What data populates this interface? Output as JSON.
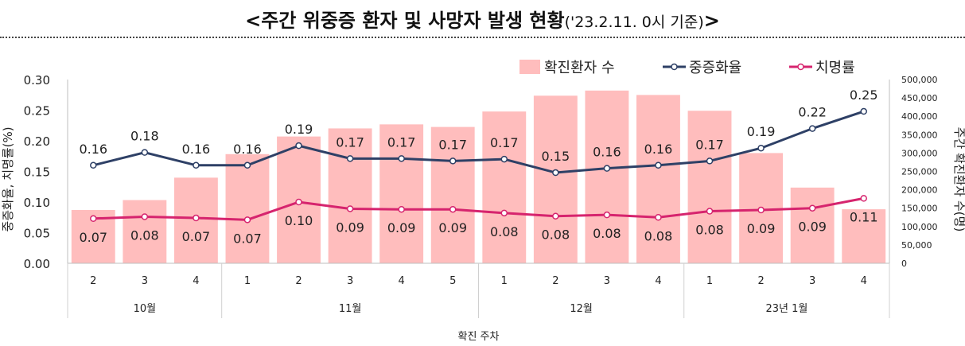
{
  "title": {
    "main": "<주간 위중증 환자 및 사망자 발생 현황",
    "sub": "('23.2.11. 0시 기준)",
    "end": ">"
  },
  "colors": {
    "bar": "#FFBDBD",
    "severe": "#2E4066",
    "fatality": "#D6246E"
  },
  "chart_data": {
    "type": "bar",
    "weeks": [
      "2",
      "3",
      "4",
      "1",
      "2",
      "3",
      "4",
      "5",
      "1",
      "2",
      "3",
      "4",
      "1",
      "2",
      "3",
      "4"
    ],
    "months": [
      {
        "label": "10월",
        "span": 3
      },
      {
        "label": "11월",
        "span": 5
      },
      {
        "label": "12월",
        "span": 4
      },
      {
        "label": "23년 1월",
        "span": 4
      }
    ],
    "series": [
      {
        "name": "확진환자 수",
        "kind": "bar",
        "axis": "right",
        "values": [
          145000,
          172000,
          233000,
          297000,
          345000,
          367000,
          378000,
          371000,
          413000,
          456000,
          470000,
          458000,
          415000,
          300000,
          206000,
          147000
        ]
      },
      {
        "name": "중증화율",
        "kind": "line",
        "axis": "left",
        "values": [
          0.16,
          0.18,
          0.16,
          0.16,
          0.19,
          0.17,
          0.17,
          0.17,
          0.17,
          0.15,
          0.16,
          0.16,
          0.17,
          0.19,
          0.22,
          0.25
        ],
        "plot": [
          0.16,
          0.181,
          0.16,
          0.16,
          0.192,
          0.171,
          0.171,
          0.167,
          0.17,
          0.148,
          0.155,
          0.16,
          0.167,
          0.188,
          0.22,
          0.248
        ]
      },
      {
        "name": "치명률",
        "kind": "line",
        "axis": "left",
        "values": [
          0.07,
          0.08,
          0.07,
          0.07,
          0.1,
          0.09,
          0.09,
          0.09,
          0.08,
          0.08,
          0.08,
          0.08,
          0.08,
          0.09,
          0.09,
          0.11
        ],
        "plot": [
          0.073,
          0.076,
          0.074,
          0.071,
          0.1,
          0.089,
          0.088,
          0.088,
          0.082,
          0.077,
          0.079,
          0.075,
          0.085,
          0.087,
          0.09,
          0.106
        ]
      }
    ],
    "ylabel_left": "중증화율, 치명률(%)",
    "ylabel_right": "주간 확진환자 수(명)",
    "xlabel": "확진 주차",
    "ylim_left": [
      0,
      0.3
    ],
    "ylim_right": [
      0,
      500000
    ],
    "yticks_left": [
      "0.00",
      "0.05",
      "0.10",
      "0.15",
      "0.20",
      "0.25",
      "0.30"
    ],
    "yticks_right": [
      "0",
      "50,000",
      "100,000",
      "150,000",
      "200,000",
      "250,000",
      "300,000",
      "350,000",
      "400,000",
      "450,000",
      "500,000"
    ],
    "legend": "top-right",
    "grid": false
  }
}
